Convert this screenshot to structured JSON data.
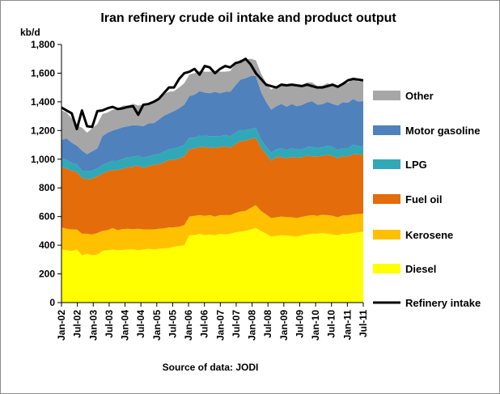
{
  "chart_data": {
    "type": "area",
    "title": "Iran refinery crude oil intake and product output",
    "ylabel": "kb/d",
    "source": "Source of data: JODI",
    "ylim": [
      0,
      1800
    ],
    "yticks": [
      0,
      200,
      400,
      600,
      800,
      1000,
      1200,
      1400,
      1600,
      1800
    ],
    "ytick_labels": [
      "0",
      "200",
      "400",
      "600",
      "800",
      "1,000",
      "1,200",
      "1,400",
      "1,600",
      "1,800"
    ],
    "xticks": [
      "Jan-02",
      "Jul-02",
      "Jan-03",
      "Jul-03",
      "Jan-04",
      "Jul-04",
      "Jan-05",
      "Jul-05",
      "Jan-06",
      "Jul-06",
      "Jan-07",
      "Jul-07",
      "Jan-08",
      "Jul-08",
      "Jan-09",
      "Jul-09",
      "Jan-10",
      "Jul-10",
      "Jan-11",
      "Jul-11"
    ],
    "stacked": true,
    "series": [
      {
        "name": "Diesel",
        "color": "#ffff00",
        "values": [
          370,
          365,
          360,
          370,
          330,
          340,
          330,
          335,
          360,
          365,
          370,
          365,
          368,
          370,
          372,
          365,
          370,
          375,
          370,
          375,
          378,
          380,
          390,
          395,
          400,
          470,
          470,
          480,
          470,
          475,
          470,
          480,
          475,
          480,
          490,
          495,
          500,
          510,
          520,
          500,
          480,
          460,
          465,
          470,
          468,
          465,
          460,
          470,
          475,
          480,
          480,
          485,
          480,
          475,
          470,
          480,
          478,
          485,
          490,
          495
        ]
      },
      {
        "name": "Kerosene",
        "color": "#ffc000",
        "values": [
          155,
          150,
          150,
          140,
          150,
          140,
          145,
          150,
          140,
          140,
          150,
          140,
          145,
          145,
          140,
          150,
          140,
          135,
          140,
          140,
          140,
          145,
          135,
          135,
          140,
          130,
          135,
          130,
          135,
          135,
          130,
          130,
          135,
          130,
          135,
          140,
          140,
          150,
          160,
          140,
          135,
          130,
          130,
          130,
          128,
          130,
          130,
          128,
          130,
          130,
          125,
          128,
          130,
          130,
          125,
          128,
          130,
          130,
          128,
          125
        ]
      },
      {
        "name": "Fuel oil",
        "color": "#e46c0a",
        "values": [
          420,
          420,
          410,
          400,
          390,
          380,
          390,
          395,
          400,
          410,
          405,
          420,
          420,
          430,
          435,
          440,
          430,
          440,
          450,
          450,
          460,
          470,
          470,
          475,
          480,
          470,
          470,
          475,
          480,
          470,
          480,
          475,
          480,
          470,
          480,
          490,
          490,
          480,
          470,
          440,
          420,
          400,
          420,
          415,
          410,
          420,
          420,
          415,
          420,
          410,
          415,
          410,
          420,
          420,
          410,
          415,
          410,
          420,
          415,
          410
        ]
      },
      {
        "name": "LPG",
        "color": "#31a8b8",
        "values": [
          60,
          60,
          55,
          55,
          50,
          55,
          55,
          55,
          60,
          60,
          65,
          65,
          70,
          70,
          70,
          70,
          70,
          70,
          70,
          70,
          75,
          75,
          80,
          80,
          80,
          80,
          75,
          80,
          80,
          80,
          80,
          75,
          80,
          80,
          80,
          80,
          75,
          70,
          70,
          60,
          55,
          55,
          55,
          60,
          60,
          60,
          60,
          55,
          60,
          65,
          60,
          60,
          65,
          60,
          60,
          55,
          60,
          65,
          60,
          60
        ]
      },
      {
        "name": "Motor gasoline",
        "color": "#4f81bd",
        "values": [
          130,
          150,
          140,
          130,
          140,
          120,
          135,
          140,
          200,
          210,
          210,
          220,
          220,
          215,
          220,
          210,
          220,
          230,
          220,
          240,
          250,
          250,
          260,
          270,
          280,
          290,
          300,
          310,
          300,
          300,
          310,
          300,
          300,
          310,
          330,
          350,
          360,
          370,
          360,
          330,
          310,
          300,
          300,
          310,
          300,
          310,
          300,
          310,
          310,
          320,
          300,
          300,
          305,
          300,
          310,
          320,
          315,
          320,
          310,
          315
        ]
      },
      {
        "name": "Other",
        "color": "#a6a6a6",
        "values": [
          205,
          180,
          170,
          140,
          160,
          150,
          160,
          170,
          155,
          140,
          145,
          140,
          150,
          145,
          150,
          140,
          150,
          140,
          150,
          145,
          150,
          150,
          140,
          145,
          150,
          150,
          150,
          140,
          145,
          150,
          145,
          150,
          140,
          145,
          150,
          140,
          130,
          120,
          110,
          130,
          130,
          140,
          140,
          140,
          140,
          140,
          140,
          140,
          140,
          130,
          130,
          130,
          130,
          130,
          135,
          135,
          140,
          140,
          140,
          140
        ]
      }
    ],
    "intake": {
      "name": "Refinery intake",
      "color": "#000000",
      "values": [
        1360,
        1340,
        1320,
        1210,
        1340,
        1230,
        1225,
        1335,
        1340,
        1355,
        1365,
        1350,
        1355,
        1365,
        1370,
        1310,
        1380,
        1385,
        1400,
        1420,
        1460,
        1500,
        1500,
        1560,
        1600,
        1610,
        1630,
        1590,
        1650,
        1640,
        1600,
        1630,
        1650,
        1640,
        1670,
        1680,
        1700,
        1660,
        1600,
        1560,
        1520,
        1510,
        1500,
        1520,
        1515,
        1520,
        1515,
        1510,
        1520,
        1510,
        1500,
        1500,
        1510,
        1520,
        1505,
        1525,
        1550,
        1560,
        1555,
        1550
      ]
    },
    "legend_placement": "right"
  }
}
